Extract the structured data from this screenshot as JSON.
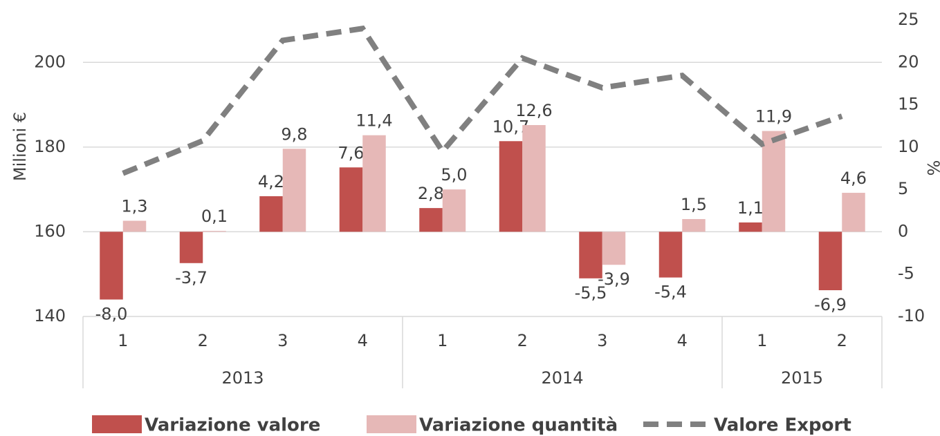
{
  "chart_data": {
    "type": "bar-line",
    "y_label": "Milioni €",
    "y2_label": "%",
    "categories": [
      "1",
      "2",
      "3",
      "4",
      "1",
      "2",
      "3",
      "4",
      "1",
      "2"
    ],
    "groups": [
      {
        "name": "2013",
        "count": 4
      },
      {
        "name": "2014",
        "count": 4
      },
      {
        "name": "2015",
        "count": 2
      }
    ],
    "ylim": [
      140,
      210
    ],
    "yticks": [
      140,
      160,
      180,
      200
    ],
    "y2lim": [
      -10,
      25
    ],
    "y2ticks": [
      -10,
      -5,
      0,
      5,
      10,
      15,
      20,
      25
    ],
    "grid": true,
    "series": [
      {
        "name": "Variazione valore",
        "type": "bar",
        "axis": "y2",
        "color": "#c0504d",
        "values": [
          -8.0,
          -3.7,
          4.2,
          7.6,
          2.8,
          10.7,
          -5.5,
          -5.4,
          1.1,
          -6.9
        ],
        "value_labels": [
          "-8,0",
          "-3,7",
          "4,2",
          "7,6",
          "2,8",
          "10,7",
          "-5,5",
          "-5,4",
          "1,1",
          "-6,9"
        ]
      },
      {
        "name": "Variazione quantità",
        "type": "bar",
        "axis": "y2",
        "color": "#e6b8b7",
        "values": [
          1.3,
          0.1,
          9.8,
          11.4,
          5.0,
          12.6,
          -3.9,
          1.5,
          11.9,
          4.6
        ],
        "value_labels": [
          "1,3",
          "0,1",
          "9,8",
          "11,4",
          "5,0",
          "12,6",
          "-3,9",
          "1,5",
          "11,9",
          "4,6"
        ]
      },
      {
        "name": "Valore Export",
        "type": "line",
        "axis": "y",
        "color": "#808080",
        "values": [
          173.8,
          181.5,
          205.2,
          208.0,
          179.0,
          201.0,
          194.0,
          196.9,
          180.7,
          187.3
        ]
      }
    ],
    "legend": "bottom"
  }
}
